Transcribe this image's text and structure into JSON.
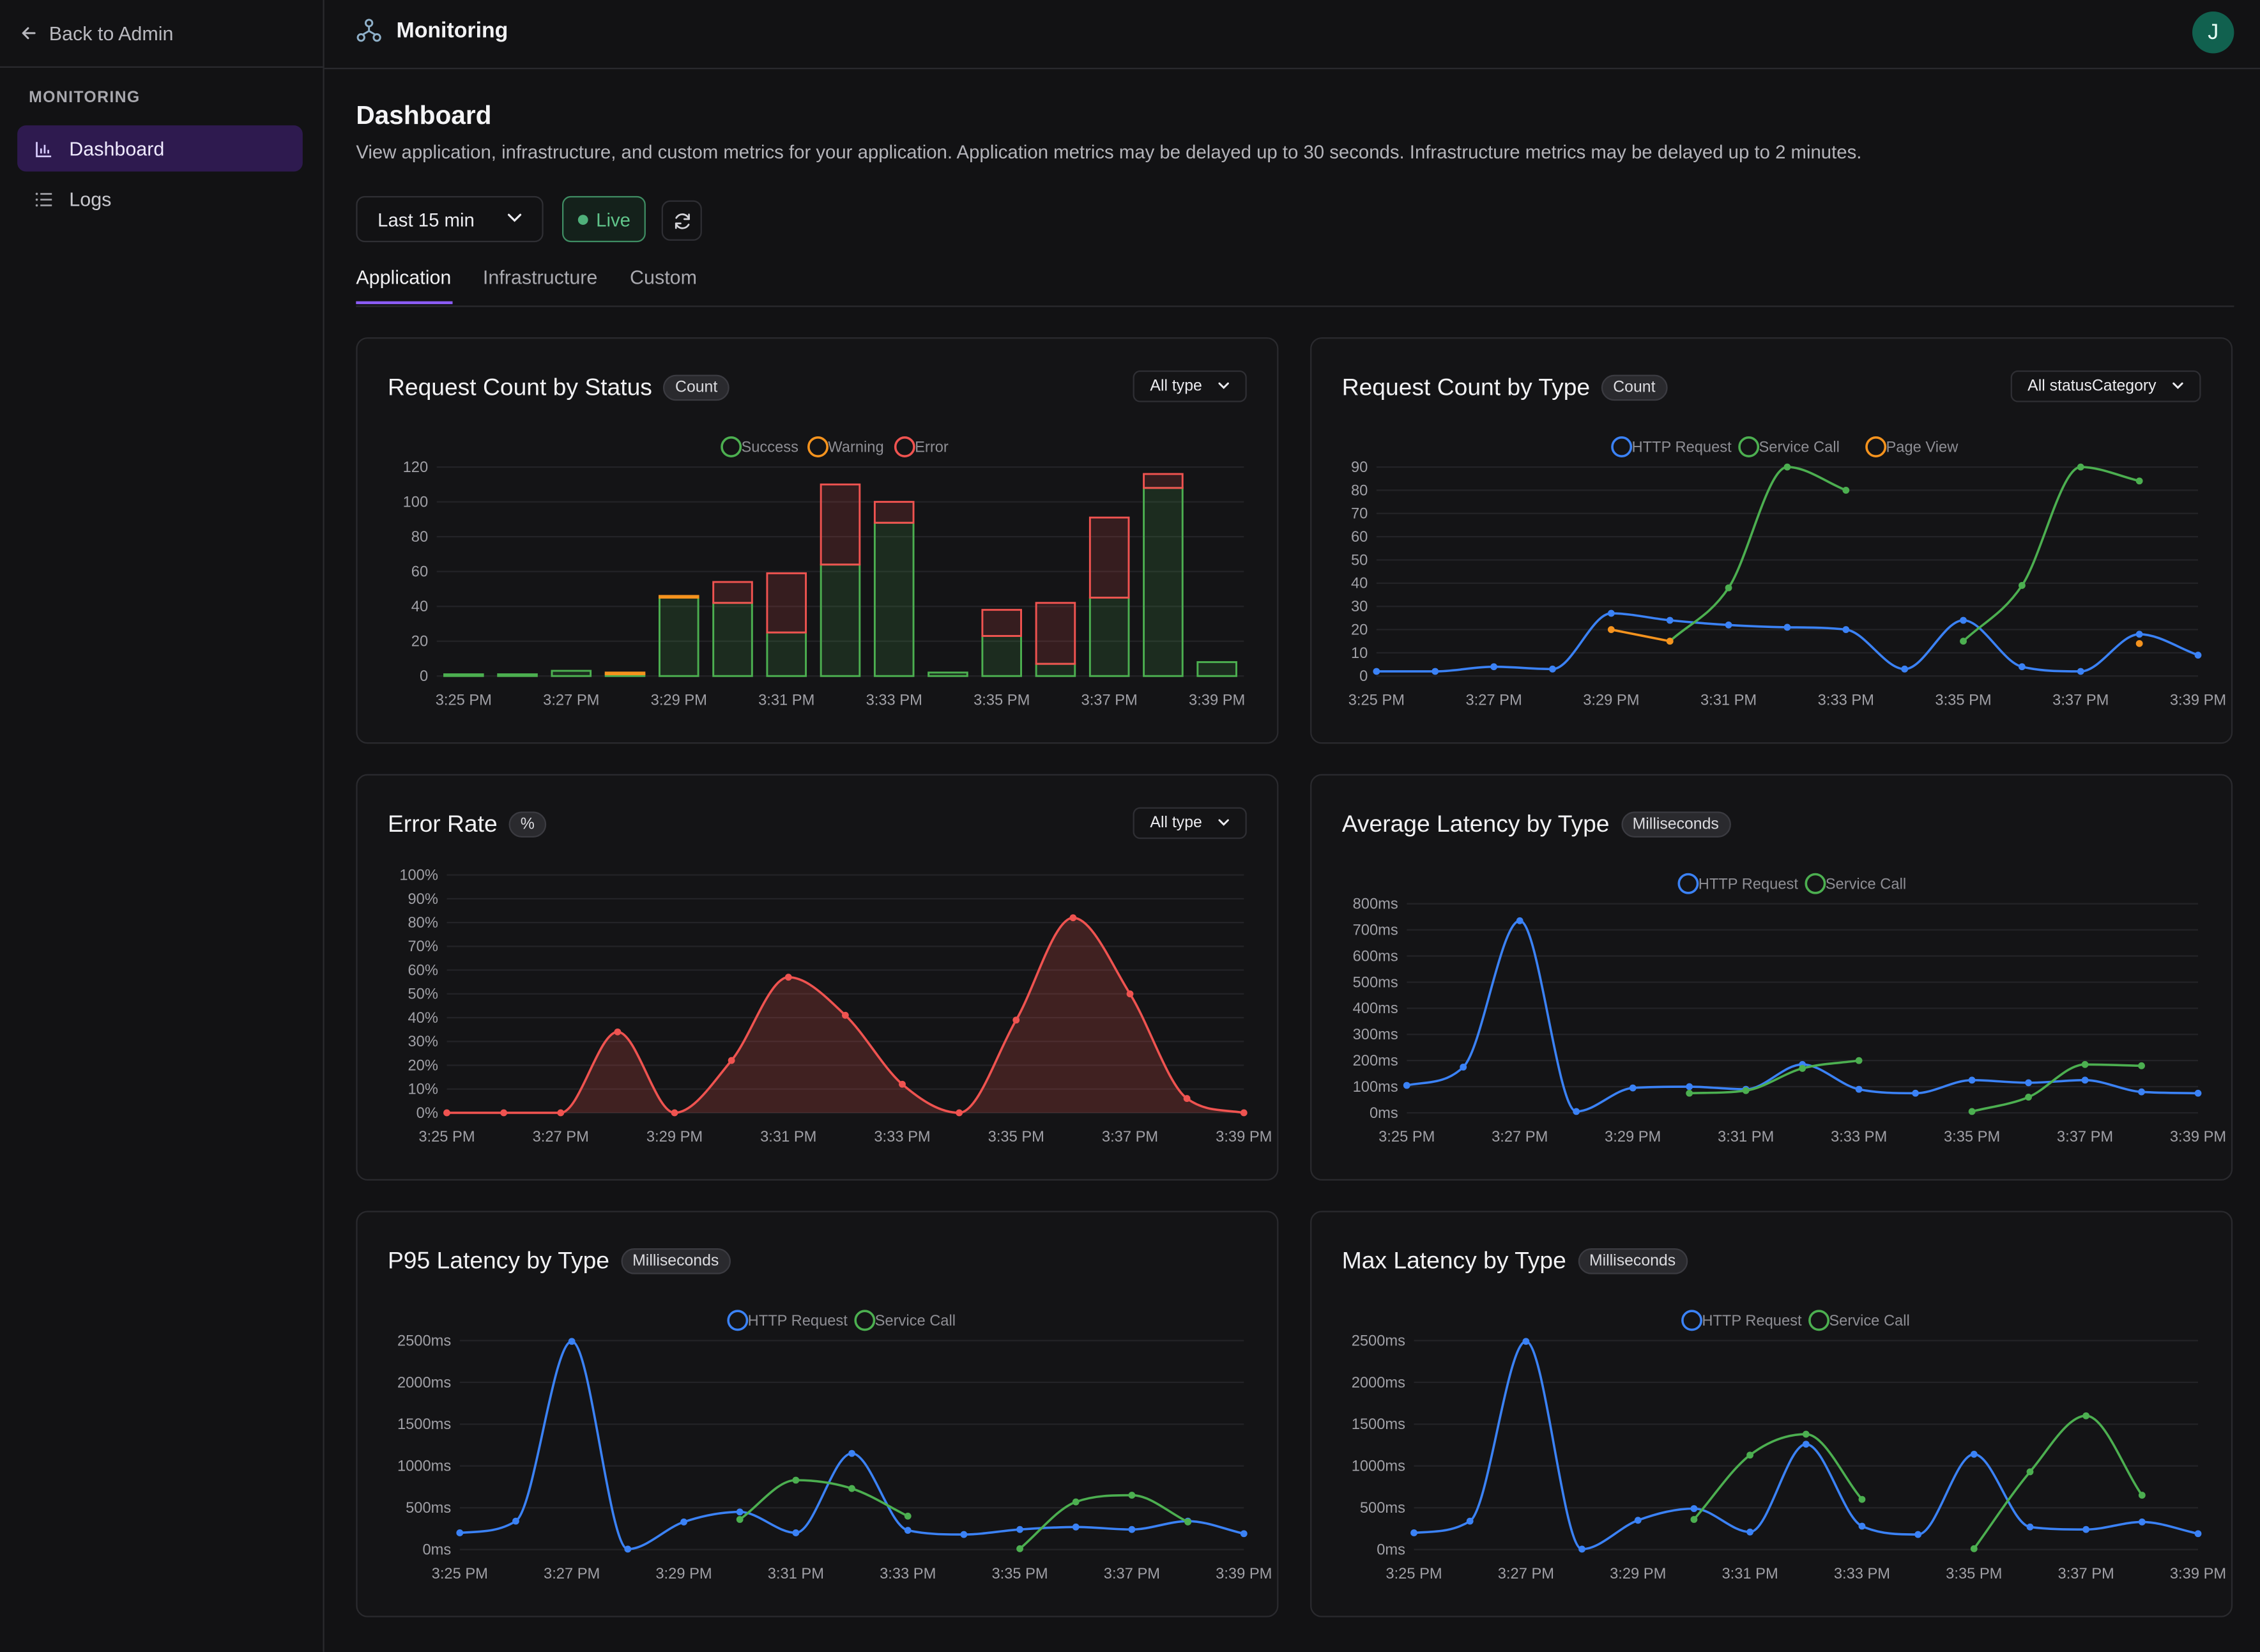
{
  "sidebar": {
    "back_label": "Back to Admin",
    "section_label": "MONITORING",
    "items": [
      {
        "label": "Dashboard",
        "icon": "bar-chart-icon",
        "active": true
      },
      {
        "label": "Logs",
        "icon": "list-icon",
        "active": false
      }
    ]
  },
  "header": {
    "title": "Monitoring",
    "avatar_initial": "J"
  },
  "page": {
    "title": "Dashboard",
    "description": "View application, infrastructure, and custom metrics for your application. Application metrics may be delayed up to 30 seconds. Infrastructure metrics may be delayed up to 2 minutes."
  },
  "controls": {
    "time_range": "Last 15 min",
    "live_label": "Live"
  },
  "tabs": [
    {
      "label": "Application",
      "active": true
    },
    {
      "label": "Infrastructure",
      "active": false
    },
    {
      "label": "Custom",
      "active": false
    }
  ],
  "cards": [
    {
      "title": "Request Count by Status",
      "badge": "Count",
      "filter": "All type"
    },
    {
      "title": "Request Count by Type",
      "badge": "Count",
      "filter": "All statusCategory"
    },
    {
      "title": "Error Rate",
      "badge": "%",
      "filter": "All type"
    },
    {
      "title": "Average Latency by Type",
      "badge": "Milliseconds"
    },
    {
      "title": "P95 Latency by Type",
      "badge": "Milliseconds"
    },
    {
      "title": "Max Latency by Type",
      "badge": "Milliseconds"
    }
  ],
  "colors": {
    "success": "#4caf50",
    "warning": "#f5931e",
    "error": "#ef5350",
    "http": "#3b82f6",
    "service": "#4caf50",
    "pageview": "#f5931e",
    "accent": "#8b5cf6"
  },
  "chart_data": [
    {
      "type": "bar",
      "title": "Request Count by Status",
      "xlabels": [
        "3:25 PM",
        "3:27 PM",
        "3:29 PM",
        "3:31 PM",
        "3:33 PM",
        "3:35 PM",
        "3:37 PM",
        "3:39 PM"
      ],
      "ylim": [
        0,
        120
      ],
      "yticks": [
        "0",
        "20",
        "40",
        "60",
        "80",
        "100",
        "120"
      ],
      "stacked": true,
      "series": [
        {
          "name": "Success",
          "values": [
            1,
            1,
            3,
            1,
            45,
            42,
            25,
            64,
            88,
            2,
            23,
            7,
            45,
            108,
            8
          ]
        },
        {
          "name": "Warning",
          "values": [
            0,
            0,
            0,
            1,
            1,
            0,
            0,
            0,
            0,
            0,
            0,
            0,
            0,
            0,
            0
          ]
        },
        {
          "name": "Error",
          "values": [
            0,
            0,
            0,
            0,
            0,
            12,
            34,
            46,
            12,
            0,
            15,
            35,
            46,
            8,
            0
          ]
        }
      ]
    },
    {
      "type": "line",
      "title": "Request Count by Type",
      "xlabels": [
        "3:25 PM",
        "3:27 PM",
        "3:29 PM",
        "3:31 PM",
        "3:33 PM",
        "3:35 PM",
        "3:37 PM",
        "3:39 PM"
      ],
      "ylim": [
        0,
        90
      ],
      "yticks": [
        "0",
        "10",
        "20",
        "30",
        "40",
        "50",
        "60",
        "70",
        "80",
        "90"
      ],
      "series": [
        {
          "name": "HTTP Request",
          "points": [
            [
              0,
              2
            ],
            [
              1,
              2
            ],
            [
              2,
              4
            ],
            [
              3,
              3
            ],
            [
              4,
              27
            ],
            [
              5,
              24
            ],
            [
              6,
              22
            ],
            [
              7,
              21
            ],
            [
              8,
              20
            ],
            [
              9,
              3
            ],
            [
              10,
              24
            ],
            [
              11,
              4
            ],
            [
              12,
              2
            ],
            [
              13,
              18
            ],
            [
              14,
              9
            ]
          ]
        },
        {
          "name": "Service Call",
          "points": [
            [
              5,
              15
            ],
            [
              6,
              38
            ],
            [
              7,
              90
            ],
            [
              8,
              80
            ],
            [
              10,
              15
            ],
            [
              11,
              39
            ],
            [
              12,
              90
            ],
            [
              13,
              84
            ]
          ]
        },
        {
          "name": "Page View",
          "points": [
            [
              4,
              20
            ],
            [
              5,
              15
            ],
            [
              13,
              14
            ]
          ]
        }
      ]
    },
    {
      "type": "area",
      "title": "Error Rate",
      "xlabels": [
        "3:25 PM",
        "3:27 PM",
        "3:29 PM",
        "3:31 PM",
        "3:33 PM",
        "3:35 PM",
        "3:37 PM",
        "3:39 PM"
      ],
      "ylim": [
        0,
        100
      ],
      "yticks": [
        "0%",
        "10%",
        "20%",
        "30%",
        "40%",
        "50%",
        "60%",
        "70%",
        "80%",
        "90%",
        "100%"
      ],
      "series": [
        {
          "name": "Error Rate",
          "points": [
            [
              0,
              0
            ],
            [
              1,
              0
            ],
            [
              2,
              0
            ],
            [
              3,
              34
            ],
            [
              4,
              0
            ],
            [
              5,
              22
            ],
            [
              6,
              57
            ],
            [
              7,
              41
            ],
            [
              8,
              12
            ],
            [
              9,
              0
            ],
            [
              10,
              39
            ],
            [
              11,
              82
            ],
            [
              12,
              50
            ],
            [
              13,
              6
            ],
            [
              14,
              0
            ]
          ]
        }
      ]
    },
    {
      "type": "line",
      "title": "Average Latency by Type",
      "xlabels": [
        "3:25 PM",
        "3:27 PM",
        "3:29 PM",
        "3:31 PM",
        "3:33 PM",
        "3:35 PM",
        "3:37 PM",
        "3:39 PM"
      ],
      "ylim": [
        0,
        800
      ],
      "yticks": [
        "0ms",
        "100ms",
        "200ms",
        "300ms",
        "400ms",
        "500ms",
        "600ms",
        "700ms",
        "800ms"
      ],
      "series": [
        {
          "name": "HTTP Request",
          "points": [
            [
              0,
              105
            ],
            [
              1,
              175
            ],
            [
              2,
              735
            ],
            [
              3,
              5
            ],
            [
              4,
              95
            ],
            [
              5,
              100
            ],
            [
              6,
              90
            ],
            [
              7,
              185
            ],
            [
              8,
              90
            ],
            [
              9,
              75
            ],
            [
              10,
              125
            ],
            [
              11,
              115
            ],
            [
              12,
              125
            ],
            [
              13,
              80
            ],
            [
              14,
              75
            ]
          ]
        },
        {
          "name": "Service Call",
          "points": [
            [
              5,
              75
            ],
            [
              6,
              85
            ],
            [
              7,
              170
            ],
            [
              8,
              200
            ],
            [
              10,
              5
            ],
            [
              11,
              60
            ],
            [
              12,
              185
            ],
            [
              13,
              180
            ]
          ]
        }
      ]
    },
    {
      "type": "line",
      "title": "P95 Latency by Type",
      "xlabels": [
        "3:25 PM",
        "3:27 PM",
        "3:29 PM",
        "3:31 PM",
        "3:33 PM",
        "3:35 PM",
        "3:37 PM",
        "3:39 PM"
      ],
      "ylim": [
        0,
        2500
      ],
      "yticks": [
        "0ms",
        "500ms",
        "1000ms",
        "1500ms",
        "2000ms",
        "2500ms"
      ],
      "series": [
        {
          "name": "HTTP Request",
          "points": [
            [
              0,
              200
            ],
            [
              1,
              340
            ],
            [
              2,
              2490
            ],
            [
              3,
              5
            ],
            [
              4,
              330
            ],
            [
              5,
              450
            ],
            [
              6,
              200
            ],
            [
              7,
              1150
            ],
            [
              8,
              230
            ],
            [
              9,
              180
            ],
            [
              10,
              240
            ],
            [
              11,
              270
            ],
            [
              12,
              240
            ],
            [
              13,
              340
            ],
            [
              14,
              190
            ]
          ]
        },
        {
          "name": "Service Call",
          "points": [
            [
              5,
              360
            ],
            [
              6,
              830
            ],
            [
              7,
              730
            ],
            [
              8,
              400
            ],
            [
              10,
              10
            ],
            [
              11,
              570
            ],
            [
              12,
              650
            ],
            [
              13,
              330
            ]
          ]
        }
      ]
    },
    {
      "type": "line",
      "title": "Max Latency by Type",
      "xlabels": [
        "3:25 PM",
        "3:27 PM",
        "3:29 PM",
        "3:31 PM",
        "3:33 PM",
        "3:35 PM",
        "3:37 PM",
        "3:39 PM"
      ],
      "ylim": [
        0,
        2500
      ],
      "yticks": [
        "0ms",
        "500ms",
        "1000ms",
        "1500ms",
        "2000ms",
        "2500ms"
      ],
      "series": [
        {
          "name": "HTTP Request",
          "points": [
            [
              0,
              200
            ],
            [
              1,
              340
            ],
            [
              2,
              2490
            ],
            [
              3,
              5
            ],
            [
              4,
              350
            ],
            [
              5,
              490
            ],
            [
              6,
              210
            ],
            [
              7,
              1260
            ],
            [
              8,
              280
            ],
            [
              9,
              180
            ],
            [
              10,
              1140
            ],
            [
              11,
              270
            ],
            [
              12,
              240
            ],
            [
              13,
              330
            ],
            [
              14,
              190
            ]
          ]
        },
        {
          "name": "Service Call",
          "points": [
            [
              5,
              360
            ],
            [
              6,
              1130
            ],
            [
              7,
              1380
            ],
            [
              8,
              600
            ],
            [
              10,
              10
            ],
            [
              11,
              930
            ],
            [
              12,
              1600
            ],
            [
              13,
              650
            ]
          ]
        }
      ]
    }
  ]
}
